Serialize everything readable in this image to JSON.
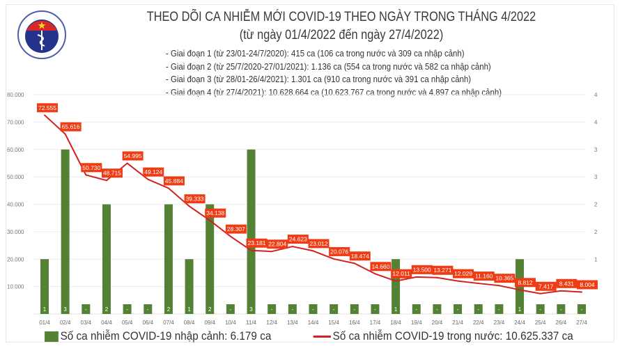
{
  "header": {
    "logo_text": "BỘ Y TẾ · MINISTRY OF HEALTH",
    "title": "THEO DÕI CA NHIỄM MỚI COVID-19 THEO NGÀY TRONG THÁNG 4/2022",
    "subtitle": "(từ ngày 01/4/2022 đến ngày 27/4/2022)",
    "notes": [
      "- Giai đoạn 1 (từ 23/01-24/7/2020): 415 ca (106 ca trong nước và 309 ca nhập cảnh)",
      "- Giai đoạn 2 (từ 25/7/2020-27/01/2021): 1.136 ca (554 ca trong nước và 582 ca nhập cảnh)",
      "- Giai đoạn 3 (từ 28/01-26/4/2021): 1.301 ca (910 ca trong nước và 391 ca nhập cảnh)",
      "- Giai đoạn 4 (từ 27/4/2021): 10.628.664 ca (10.623.767 ca trong nước và 4.897 ca nhập cảnh)"
    ]
  },
  "chart_data": {
    "type": "bar+line",
    "categories": [
      "01/4",
      "02/4",
      "03/4",
      "04/4",
      "05/4",
      "06/4",
      "07/4",
      "08/4",
      "09/4",
      "10/4",
      "11/4",
      "12/4",
      "13/4",
      "14/4",
      "15/4",
      "16/4",
      "17/4",
      "18/4",
      "19/4",
      "20/4",
      "21/4",
      "22/4",
      "23/4",
      "24/4",
      "25/4",
      "26/4",
      "27/4"
    ],
    "series": [
      {
        "name": "Số ca nhiễm COVID-19 nhập cảnh: 6.179 ca",
        "type": "bar",
        "axis": "right",
        "color": "#548235",
        "values": [
          1,
          3,
          0,
          2,
          0,
          0,
          2,
          1,
          2,
          0,
          3,
          0,
          0,
          0,
          0,
          0,
          0,
          1,
          0,
          0,
          0,
          0,
          0,
          1,
          0,
          0,
          0
        ],
        "data_labels": [
          "1",
          "3",
          "-",
          "2",
          "-",
          "-",
          "2",
          "1",
          "2",
          "-",
          "3",
          "-",
          "-",
          "-",
          "-",
          "-",
          "-",
          "1",
          "-",
          "-",
          "-",
          "-",
          "-",
          "1",
          "-",
          "-",
          "-"
        ]
      },
      {
        "name": "Số ca nhiễm COVID-19 trong nước: 10.625.337 ca",
        "type": "line",
        "axis": "left",
        "color": "#d32020",
        "values": [
          72555,
          65616,
          50730,
          48715,
          54995,
          49124,
          45884,
          39333,
          34138,
          28307,
          23181,
          22804,
          24623,
          23012,
          20076,
          18474,
          14660,
          12011,
          13500,
          13271,
          12029,
          11160,
          10365,
          8812,
          7417,
          8431,
          8004
        ],
        "data_labels": [
          "72.555",
          "65.616",
          "50.730",
          "48.715",
          "54.995",
          "49.124",
          "45.884",
          "39.333",
          "34.138",
          "28.307",
          "23.181",
          "22.804",
          "24.623",
          "23.012",
          "20.076",
          "18.474",
          "14.660",
          "12.011",
          "13.500",
          "13.271",
          "12.029",
          "11.160",
          "10.365",
          "8.812",
          "7.417",
          "8.431",
          "8.004"
        ]
      }
    ],
    "y_left": {
      "range": [
        0,
        80000
      ],
      "ticks": [
        "10.000",
        "20.000",
        "30.000",
        "40.000",
        "50.000",
        "60.000",
        "70.000",
        "80.000"
      ]
    },
    "y_right": {
      "range": [
        0,
        4
      ],
      "ticks": [
        "1",
        "1",
        "2",
        "2",
        "3",
        "3",
        "4",
        "4"
      ]
    },
    "grid": true,
    "legend": "bottom",
    "legend_labels": [
      "Số ca nhiễm COVID-19 nhập cảnh: 6.179 ca",
      "Số ca nhiễm COVID-19 trong nước: 10.625.337 ca"
    ],
    "colors": {
      "bar": "#548235",
      "line": "#d32020",
      "label_bg": "#f03c14"
    }
  }
}
